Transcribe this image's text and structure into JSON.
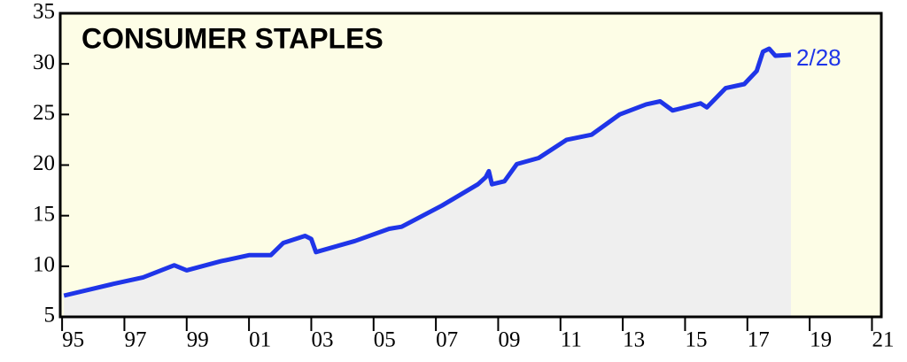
{
  "chart_data": {
    "type": "line",
    "title": "CONSUMER STAPLES",
    "annotation": "2/28",
    "background": "#fdfde6",
    "area_color": "#efefef",
    "series": [
      {
        "name": "Consumer Staples",
        "color": "#1f35e8",
        "x": [
          1995.06,
          1996.7,
          1997.6,
          1998.6,
          1999.0,
          2000.1,
          2001.0,
          2001.7,
          2002.1,
          2002.8,
          2003.0,
          2003.15,
          2004.4,
          2005.5,
          2005.9,
          2007.2,
          2008.35,
          2008.6,
          2008.7,
          2008.8,
          2009.2,
          2009.6,
          2010.3,
          2011.2,
          2012.0,
          2012.9,
          2013.75,
          2014.2,
          2014.6,
          2015.5,
          2015.7,
          2016.3,
          2016.9,
          2017.3,
          2017.5,
          2017.7,
          2017.9,
          2018.4
        ],
        "values": [
          7.1,
          8.3,
          8.9,
          10.1,
          9.6,
          10.5,
          11.1,
          11.1,
          12.3,
          13.0,
          12.7,
          11.4,
          12.5,
          13.7,
          13.9,
          16.0,
          18.1,
          18.8,
          19.4,
          18.1,
          18.4,
          20.1,
          20.7,
          22.5,
          23.0,
          25.0,
          26.0,
          26.3,
          25.4,
          26.1,
          25.7,
          27.6,
          28.0,
          29.3,
          31.2,
          31.5,
          30.8,
          30.9
        ]
      }
    ],
    "xlim": [
      1994.94,
      2021.3
    ],
    "xticks": [
      {
        "value": 1995,
        "label": "95"
      },
      {
        "value": 1997,
        "label": "97"
      },
      {
        "value": 1999,
        "label": "99"
      },
      {
        "value": 2001,
        "label": "01"
      },
      {
        "value": 2003,
        "label": "03"
      },
      {
        "value": 2005,
        "label": "05"
      },
      {
        "value": 2007,
        "label": "07"
      },
      {
        "value": 2009,
        "label": "09"
      },
      {
        "value": 2011,
        "label": "11"
      },
      {
        "value": 2013,
        "label": "13"
      },
      {
        "value": 2015,
        "label": "15"
      },
      {
        "value": 2017,
        "label": "17"
      },
      {
        "value": 2019,
        "label": "19"
      },
      {
        "value": 2021,
        "label": "21"
      }
    ],
    "ylim": [
      5,
      35
    ],
    "yticks": [
      5,
      10,
      15,
      20,
      25,
      30,
      35
    ]
  }
}
